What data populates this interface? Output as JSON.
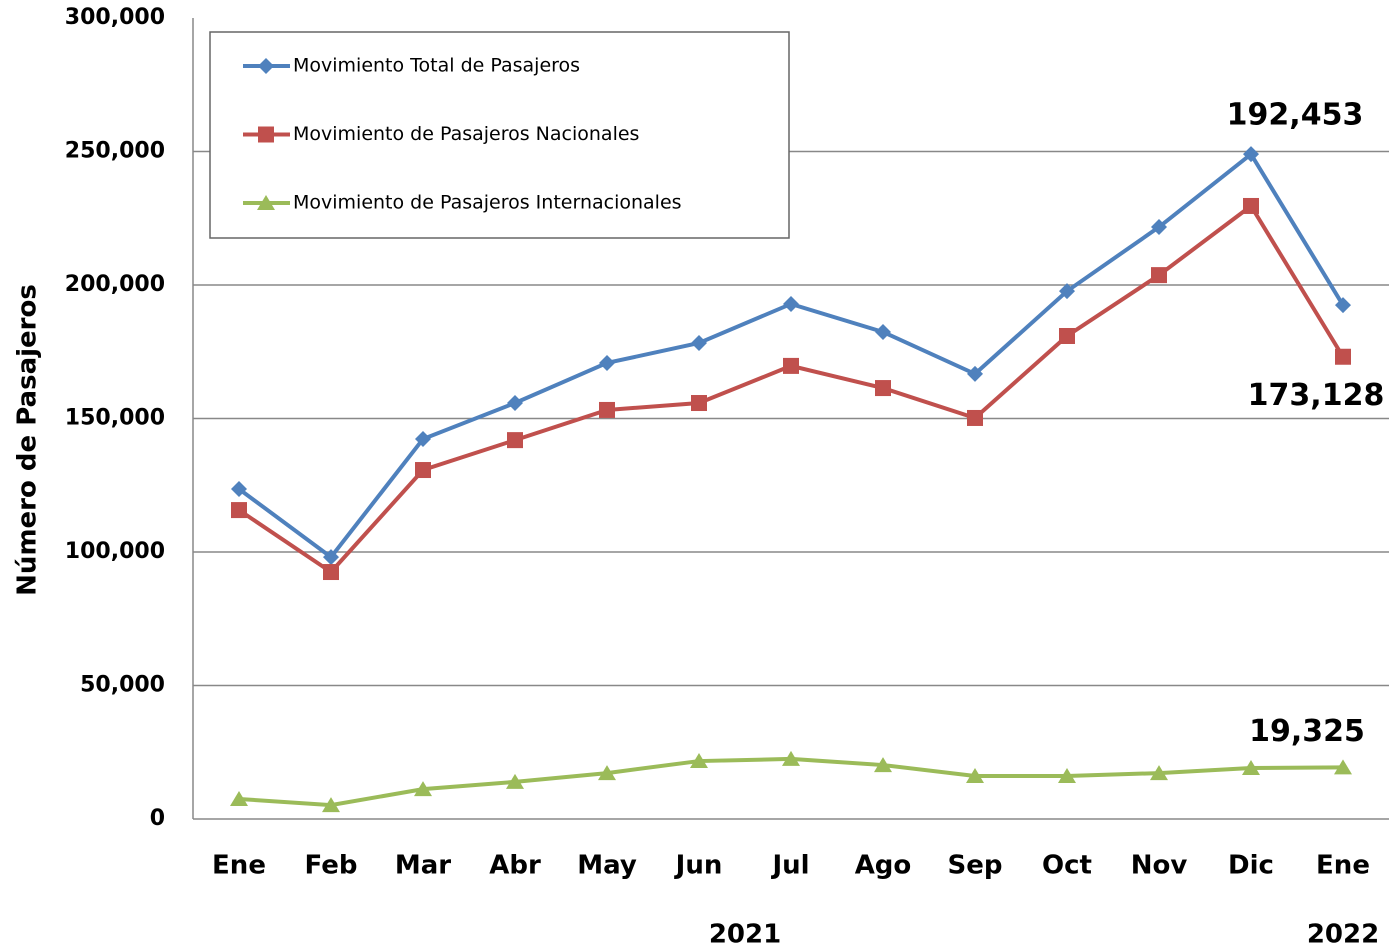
{
  "chart_data": {
    "type": "line",
    "y_label": "Número de Pasajeros",
    "categories": [
      "Ene",
      "Feb",
      "Mar",
      "Abr",
      "May",
      "Jun",
      "Jul",
      "Ago",
      "Sep",
      "Oct",
      "Nov",
      "Dic",
      "Ene"
    ],
    "year_labels": [
      "2021",
      "2022"
    ],
    "series": [
      {
        "name": "Movimiento Total de Pasajeros",
        "color": "#4f81bd",
        "marker": "diamond",
        "values": [
          123600,
          98100,
          142300,
          155800,
          170800,
          178300,
          192900,
          182400,
          166700,
          197700,
          221700,
          249000,
          192453
        ],
        "value_labels": [
          null,
          null,
          null,
          null,
          null,
          null,
          null,
          null,
          null,
          null,
          null,
          null,
          "192,453"
        ]
      },
      {
        "name": "Movimiento de Pasajeros Nacionales",
        "color": "#c0504d",
        "marker": "square",
        "values": [
          115700,
          92500,
          130700,
          141900,
          153200,
          155800,
          169700,
          161400,
          150200,
          180900,
          203700,
          229600,
          173128
        ],
        "value_labels": [
          null,
          null,
          null,
          null,
          null,
          null,
          null,
          null,
          null,
          null,
          null,
          null,
          "173,128"
        ]
      },
      {
        "name": "Movimiento de Pasajeros Internacionales",
        "color": "#9bbb59",
        "marker": "triangle",
        "values": [
          7500,
          5200,
          11200,
          13900,
          17200,
          21700,
          22500,
          20200,
          16100,
          16100,
          17200,
          19100,
          19325
        ],
        "value_labels": [
          null,
          null,
          null,
          null,
          null,
          null,
          null,
          null,
          null,
          null,
          null,
          null,
          "19,325"
        ]
      }
    ],
    "ylim": [
      0,
      300000
    ],
    "yticks": [
      0,
      {
        "value": 50000,
        "label": "50,000"
      },
      {
        "value": 100000,
        "label": "100,000"
      },
      {
        "value": 150000,
        "label": "150,000"
      },
      {
        "value": 200000,
        "label": "200,000"
      },
      {
        "value": 250000,
        "label": "250,000"
      },
      {
        "value": 300000,
        "label": "300,000"
      }
    ],
    "grid": true
  }
}
